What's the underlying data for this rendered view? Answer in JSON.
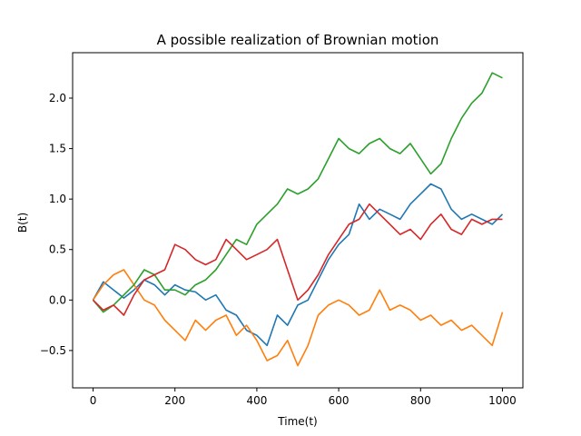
{
  "chart_data": {
    "type": "line",
    "title": "A possible realization of Brownian motion",
    "xlabel": "Time(t)",
    "ylabel": "B(t)",
    "xlim": [
      -50,
      1050
    ],
    "ylim": [
      -0.87,
      2.45
    ],
    "xticks": [
      0,
      200,
      400,
      600,
      800,
      1000
    ],
    "yticks": [
      -0.5,
      0.0,
      0.5,
      1.0,
      1.5,
      2.0
    ],
    "ytick_labels": [
      "−0.5",
      "0.0",
      "0.5",
      "1.0",
      "1.5",
      "2.0"
    ],
    "grid": false,
    "legend": "none",
    "series": [
      {
        "color": "#1f77b4",
        "x": [
          0,
          25,
          50,
          75,
          100,
          125,
          150,
          175,
          200,
          225,
          250,
          275,
          300,
          325,
          350,
          375,
          400,
          425,
          450,
          475,
          500,
          525,
          550,
          575,
          600,
          625,
          650,
          675,
          700,
          725,
          750,
          775,
          800,
          825,
          850,
          875,
          900,
          925,
          950,
          975,
          1000
        ],
        "y": [
          0.0,
          0.18,
          0.1,
          0.02,
          0.1,
          0.2,
          0.15,
          0.05,
          0.15,
          0.1,
          0.08,
          0.0,
          0.05,
          -0.1,
          -0.15,
          -0.3,
          -0.35,
          -0.45,
          -0.15,
          -0.25,
          -0.05,
          0.0,
          0.2,
          0.4,
          0.55,
          0.65,
          0.95,
          0.8,
          0.9,
          0.85,
          0.8,
          0.95,
          1.05,
          1.15,
          1.1,
          0.9,
          0.8,
          0.85,
          0.8,
          0.75,
          0.85
        ]
      },
      {
        "color": "#ff7f0e",
        "x": [
          0,
          25,
          50,
          75,
          100,
          125,
          150,
          175,
          200,
          225,
          250,
          275,
          300,
          325,
          350,
          375,
          400,
          425,
          450,
          475,
          500,
          525,
          550,
          575,
          600,
          625,
          650,
          675,
          700,
          725,
          750,
          775,
          800,
          825,
          850,
          875,
          900,
          925,
          950,
          975,
          1000
        ],
        "y": [
          0.0,
          0.15,
          0.25,
          0.3,
          0.15,
          0.0,
          -0.05,
          -0.2,
          -0.3,
          -0.4,
          -0.2,
          -0.3,
          -0.2,
          -0.15,
          -0.35,
          -0.25,
          -0.4,
          -0.6,
          -0.55,
          -0.4,
          -0.65,
          -0.45,
          -0.15,
          -0.05,
          0.0,
          -0.05,
          -0.15,
          -0.1,
          0.1,
          -0.1,
          -0.05,
          -0.1,
          -0.2,
          -0.15,
          -0.25,
          -0.2,
          -0.3,
          -0.25,
          -0.35,
          -0.45,
          -0.12
        ]
      },
      {
        "color": "#2ca02c",
        "x": [
          0,
          25,
          50,
          75,
          100,
          125,
          150,
          175,
          200,
          225,
          250,
          275,
          300,
          325,
          350,
          375,
          400,
          425,
          450,
          475,
          500,
          525,
          550,
          575,
          600,
          625,
          650,
          675,
          700,
          725,
          750,
          775,
          800,
          825,
          850,
          875,
          900,
          925,
          950,
          975,
          1000
        ],
        "y": [
          0.0,
          -0.12,
          -0.05,
          0.05,
          0.15,
          0.3,
          0.25,
          0.1,
          0.1,
          0.05,
          0.15,
          0.2,
          0.3,
          0.45,
          0.6,
          0.55,
          0.75,
          0.85,
          0.95,
          1.1,
          1.05,
          1.1,
          1.2,
          1.4,
          1.6,
          1.5,
          1.45,
          1.55,
          1.6,
          1.5,
          1.45,
          1.55,
          1.4,
          1.25,
          1.35,
          1.6,
          1.8,
          1.95,
          2.05,
          2.25,
          2.2
        ]
      },
      {
        "color": "#d62728",
        "x": [
          0,
          25,
          50,
          75,
          100,
          125,
          150,
          175,
          200,
          225,
          250,
          275,
          300,
          325,
          350,
          375,
          400,
          425,
          450,
          475,
          500,
          525,
          550,
          575,
          600,
          625,
          650,
          675,
          700,
          725,
          750,
          775,
          800,
          825,
          850,
          875,
          900,
          925,
          950,
          975,
          1000
        ],
        "y": [
          0.0,
          -0.1,
          -0.05,
          -0.15,
          0.05,
          0.2,
          0.25,
          0.3,
          0.55,
          0.5,
          0.4,
          0.35,
          0.4,
          0.6,
          0.5,
          0.4,
          0.45,
          0.5,
          0.6,
          0.3,
          0.0,
          0.1,
          0.25,
          0.45,
          0.6,
          0.75,
          0.8,
          0.95,
          0.85,
          0.75,
          0.65,
          0.7,
          0.6,
          0.75,
          0.85,
          0.7,
          0.65,
          0.8,
          0.75,
          0.8,
          0.8
        ]
      }
    ]
  }
}
